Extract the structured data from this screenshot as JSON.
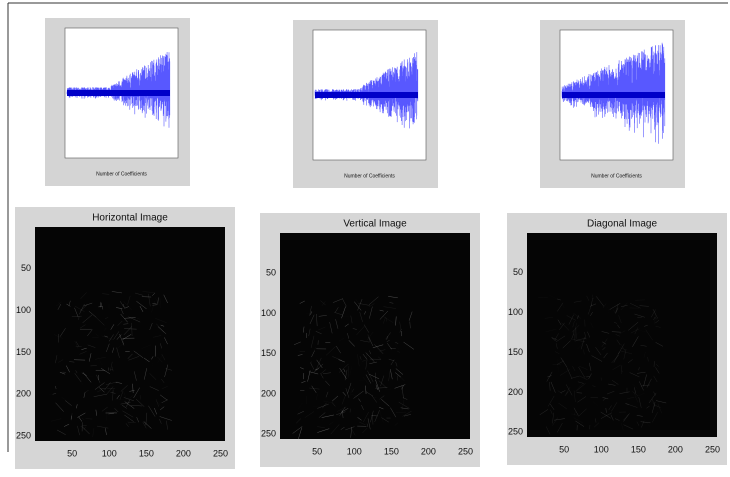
{
  "plots": [
    {
      "x_label": "Number of Coefficients"
    },
    {
      "x_label": "Number of Coefficients"
    },
    {
      "x_label": "Number of Coefficients"
    }
  ],
  "images": [
    {
      "title": "Horizontal Image",
      "x_ticks": [
        50,
        100,
        150,
        200,
        250
      ],
      "y_ticks": [
        50,
        100,
        150,
        200,
        250
      ]
    },
    {
      "title": "Vertical Image",
      "x_ticks": [
        50,
        100,
        150,
        200,
        250
      ],
      "y_ticks": [
        50,
        100,
        150,
        200,
        250
      ]
    },
    {
      "title": "Diagonal Image",
      "x_ticks": [
        50,
        100,
        150,
        200,
        250
      ],
      "y_ticks": [
        50,
        100,
        150,
        200,
        250
      ]
    }
  ]
}
